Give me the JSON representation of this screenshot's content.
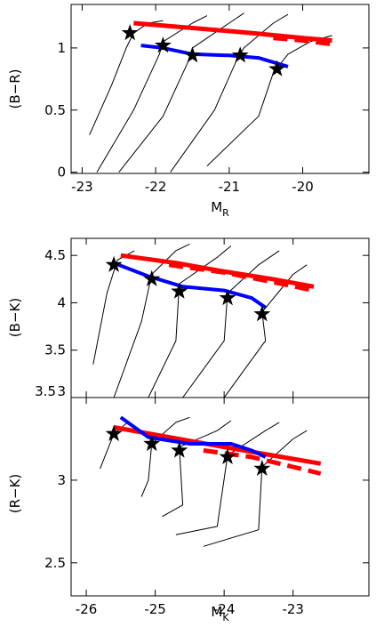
{
  "chart_data": [
    {
      "type": "line",
      "xlabel": "M",
      "xlabel_sub": "R",
      "ylabel": "(B−R)",
      "xlim": [
        -23.15,
        -19.1
      ],
      "ylim": [
        -0.01,
        1.35
      ],
      "xticks": [
        -23,
        -22,
        -21,
        -20
      ],
      "yticks": [
        0,
        0.5,
        1
      ],
      "xticklabels": true,
      "series": [
        {
          "color": "#000000",
          "style": "solid",
          "width": 1,
          "x": [
            -22.9,
            -22.6,
            -22.4,
            -22.3,
            -22.1,
            -21.9
          ],
          "values": [
            0.3,
            0.7,
            1.0,
            1.12,
            1.2,
            1.22
          ]
        },
        {
          "color": "#000000",
          "style": "solid",
          "width": 1,
          "x": [
            -22.8,
            -22.3,
            -21.95,
            -21.9,
            -21.5,
            -21.3
          ],
          "values": [
            0.0,
            0.5,
            0.95,
            1.05,
            1.2,
            1.26
          ]
        },
        {
          "color": "#000000",
          "style": "solid",
          "width": 1,
          "x": [
            -22.5,
            -21.9,
            -21.55,
            -21.5,
            -21.0,
            -20.8
          ],
          "values": [
            0.0,
            0.45,
            0.9,
            1.0,
            1.2,
            1.28
          ]
        },
        {
          "color": "#000000",
          "style": "solid",
          "width": 1,
          "x": [
            -21.8,
            -21.2,
            -20.9,
            -20.8,
            -20.4,
            -20.2
          ],
          "values": [
            0.0,
            0.5,
            0.9,
            1.0,
            1.2,
            1.27
          ]
        },
        {
          "color": "#000000",
          "style": "solid",
          "width": 1,
          "x": [
            -21.3,
            -20.6,
            -20.4,
            -20.2,
            -19.9,
            -19.6
          ],
          "values": [
            0.05,
            0.45,
            0.8,
            0.95,
            1.05,
            1.1
          ]
        },
        {
          "color": "#ff0000",
          "style": "solid",
          "width": 5,
          "x": [
            -22.3,
            -21.5,
            -20.7,
            -20.0,
            -19.6
          ],
          "values": [
            1.2,
            1.16,
            1.12,
            1.08,
            1.06
          ]
        },
        {
          "color": "#ff0000",
          "style": "dashed",
          "width": 5,
          "x": [
            -20.4,
            -20.0,
            -19.6
          ],
          "values": [
            1.08,
            1.06,
            1.03
          ]
        },
        {
          "color": "#0000ff",
          "style": "solid",
          "width": 4,
          "x": [
            -22.2,
            -21.9,
            -21.5,
            -21.0,
            -20.6,
            -20.2
          ],
          "values": [
            1.02,
            1.0,
            0.95,
            0.94,
            0.92,
            0.85
          ]
        },
        {
          "color": "#000000",
          "style": "stars",
          "x": [
            -22.35,
            -21.9,
            -21.5,
            -20.85,
            -20.35
          ],
          "values": [
            1.12,
            1.02,
            0.94,
            0.94,
            0.83
          ]
        }
      ]
    },
    {
      "type": "line",
      "ylabel": "(B−K)",
      "xlim": [
        -26.22,
        -21.9
      ],
      "ylim": [
        3,
        4.68
      ],
      "xticks": [
        -26,
        -25,
        -24,
        -23
      ],
      "yticks": [
        3,
        3.5,
        4,
        4.5
      ],
      "xticklabels": false,
      "series": [
        {
          "color": "#000000",
          "style": "solid",
          "width": 1,
          "x": [
            -25.9,
            -25.7,
            -25.55,
            -25.3
          ],
          "values": [
            3.35,
            4.1,
            4.45,
            4.55
          ]
        },
        {
          "color": "#000000",
          "style": "solid",
          "width": 1,
          "x": [
            -25.6,
            -25.2,
            -25.05,
            -24.7,
            -24.5
          ],
          "values": [
            3.0,
            3.8,
            4.3,
            4.55,
            4.62
          ]
        },
        {
          "color": "#000000",
          "style": "solid",
          "width": 1,
          "x": [
            -25.1,
            -24.7,
            -24.65,
            -24.1,
            -23.9
          ],
          "values": [
            3.0,
            3.6,
            4.2,
            4.48,
            4.6
          ]
        },
        {
          "color": "#000000",
          "style": "solid",
          "width": 1,
          "x": [
            -24.6,
            -24.0,
            -23.95,
            -23.5,
            -23.2
          ],
          "values": [
            3.0,
            3.6,
            4.1,
            4.4,
            4.55
          ]
        },
        {
          "color": "#000000",
          "style": "solid",
          "width": 1,
          "x": [
            -24.0,
            -23.4,
            -23.45,
            -23.0,
            -22.8
          ],
          "values": [
            3.0,
            3.6,
            3.9,
            4.3,
            4.4
          ]
        },
        {
          "color": "#ff0000",
          "style": "solid",
          "width": 5,
          "x": [
            -25.5,
            -24.7,
            -24.0,
            -23.3,
            -22.7
          ],
          "values": [
            4.5,
            4.42,
            4.33,
            4.25,
            4.17
          ]
        },
        {
          "color": "#ff0000",
          "style": "dashed",
          "width": 5,
          "x": [
            -24.8,
            -24.0,
            -23.3,
            -22.7
          ],
          "values": [
            4.4,
            4.32,
            4.22,
            4.13
          ]
        },
        {
          "color": "#0000ff",
          "style": "solid",
          "width": 4,
          "x": [
            -25.6,
            -25.1,
            -24.6,
            -24.0,
            -23.6,
            -23.4
          ],
          "values": [
            4.42,
            4.28,
            4.17,
            4.13,
            4.05,
            3.95
          ]
        },
        {
          "color": "#000000",
          "style": "stars",
          "x": [
            -25.6,
            -25.05,
            -24.65,
            -23.95,
            -23.45
          ],
          "values": [
            4.4,
            4.25,
            4.12,
            4.05,
            3.88
          ]
        }
      ]
    },
    {
      "type": "line",
      "xlabel": "M",
      "xlabel_sub": "K",
      "ylabel": "(R−K)",
      "xlim": [
        -26.22,
        -21.9
      ],
      "ylim": [
        2.3,
        3.5
      ],
      "xticks": [
        -26,
        -25,
        -24,
        -23
      ],
      "yticks": [
        2.5,
        3,
        3.5
      ],
      "xticklabels": true,
      "series": [
        {
          "color": "#000000",
          "style": "solid",
          "width": 1,
          "x": [
            -25.8,
            -25.6,
            -25.4
          ],
          "values": [
            3.07,
            3.28,
            3.35
          ]
        },
        {
          "color": "#000000",
          "style": "solid",
          "width": 1,
          "x": [
            -25.2,
            -25.1,
            -25.05,
            -24.7,
            -24.5
          ],
          "values": [
            2.9,
            3.0,
            3.22,
            3.35,
            3.38
          ]
        },
        {
          "color": "#000000",
          "style": "solid",
          "width": 1,
          "x": [
            -24.9,
            -24.6,
            -24.65,
            -24.1,
            -23.9
          ],
          "values": [
            2.78,
            2.85,
            3.2,
            3.3,
            3.36
          ]
        },
        {
          "color": "#000000",
          "style": "solid",
          "width": 1,
          "x": [
            -24.7,
            -24.1,
            -23.95,
            -23.4,
            -23.2
          ],
          "values": [
            2.67,
            2.72,
            3.15,
            3.3,
            3.35
          ]
        },
        {
          "color": "#000000",
          "style": "solid",
          "width": 1,
          "x": [
            -24.3,
            -23.5,
            -23.45,
            -23.0,
            -22.8
          ],
          "values": [
            2.6,
            2.7,
            3.08,
            3.25,
            3.3
          ]
        },
        {
          "color": "#ff0000",
          "style": "solid",
          "width": 5,
          "x": [
            -25.6,
            -24.8,
            -24.0,
            -23.3,
            -22.6
          ],
          "values": [
            3.32,
            3.26,
            3.2,
            3.15,
            3.1
          ]
        },
        {
          "color": "#ff0000",
          "style": "dashed",
          "width": 5,
          "x": [
            -24.3,
            -23.6,
            -23.0,
            -22.6
          ],
          "values": [
            3.18,
            3.14,
            3.08,
            3.04
          ]
        },
        {
          "color": "#0000ff",
          "style": "solid",
          "width": 4,
          "x": [
            -25.5,
            -25.1,
            -24.5,
            -23.9,
            -23.6,
            -23.4
          ],
          "values": [
            3.38,
            3.26,
            3.22,
            3.22,
            3.18,
            3.14
          ]
        },
        {
          "color": "#000000",
          "style": "stars",
          "x": [
            -25.6,
            -25.05,
            -24.65,
            -23.95,
            -23.45
          ],
          "values": [
            3.28,
            3.22,
            3.18,
            3.14,
            3.07
          ]
        }
      ]
    }
  ]
}
